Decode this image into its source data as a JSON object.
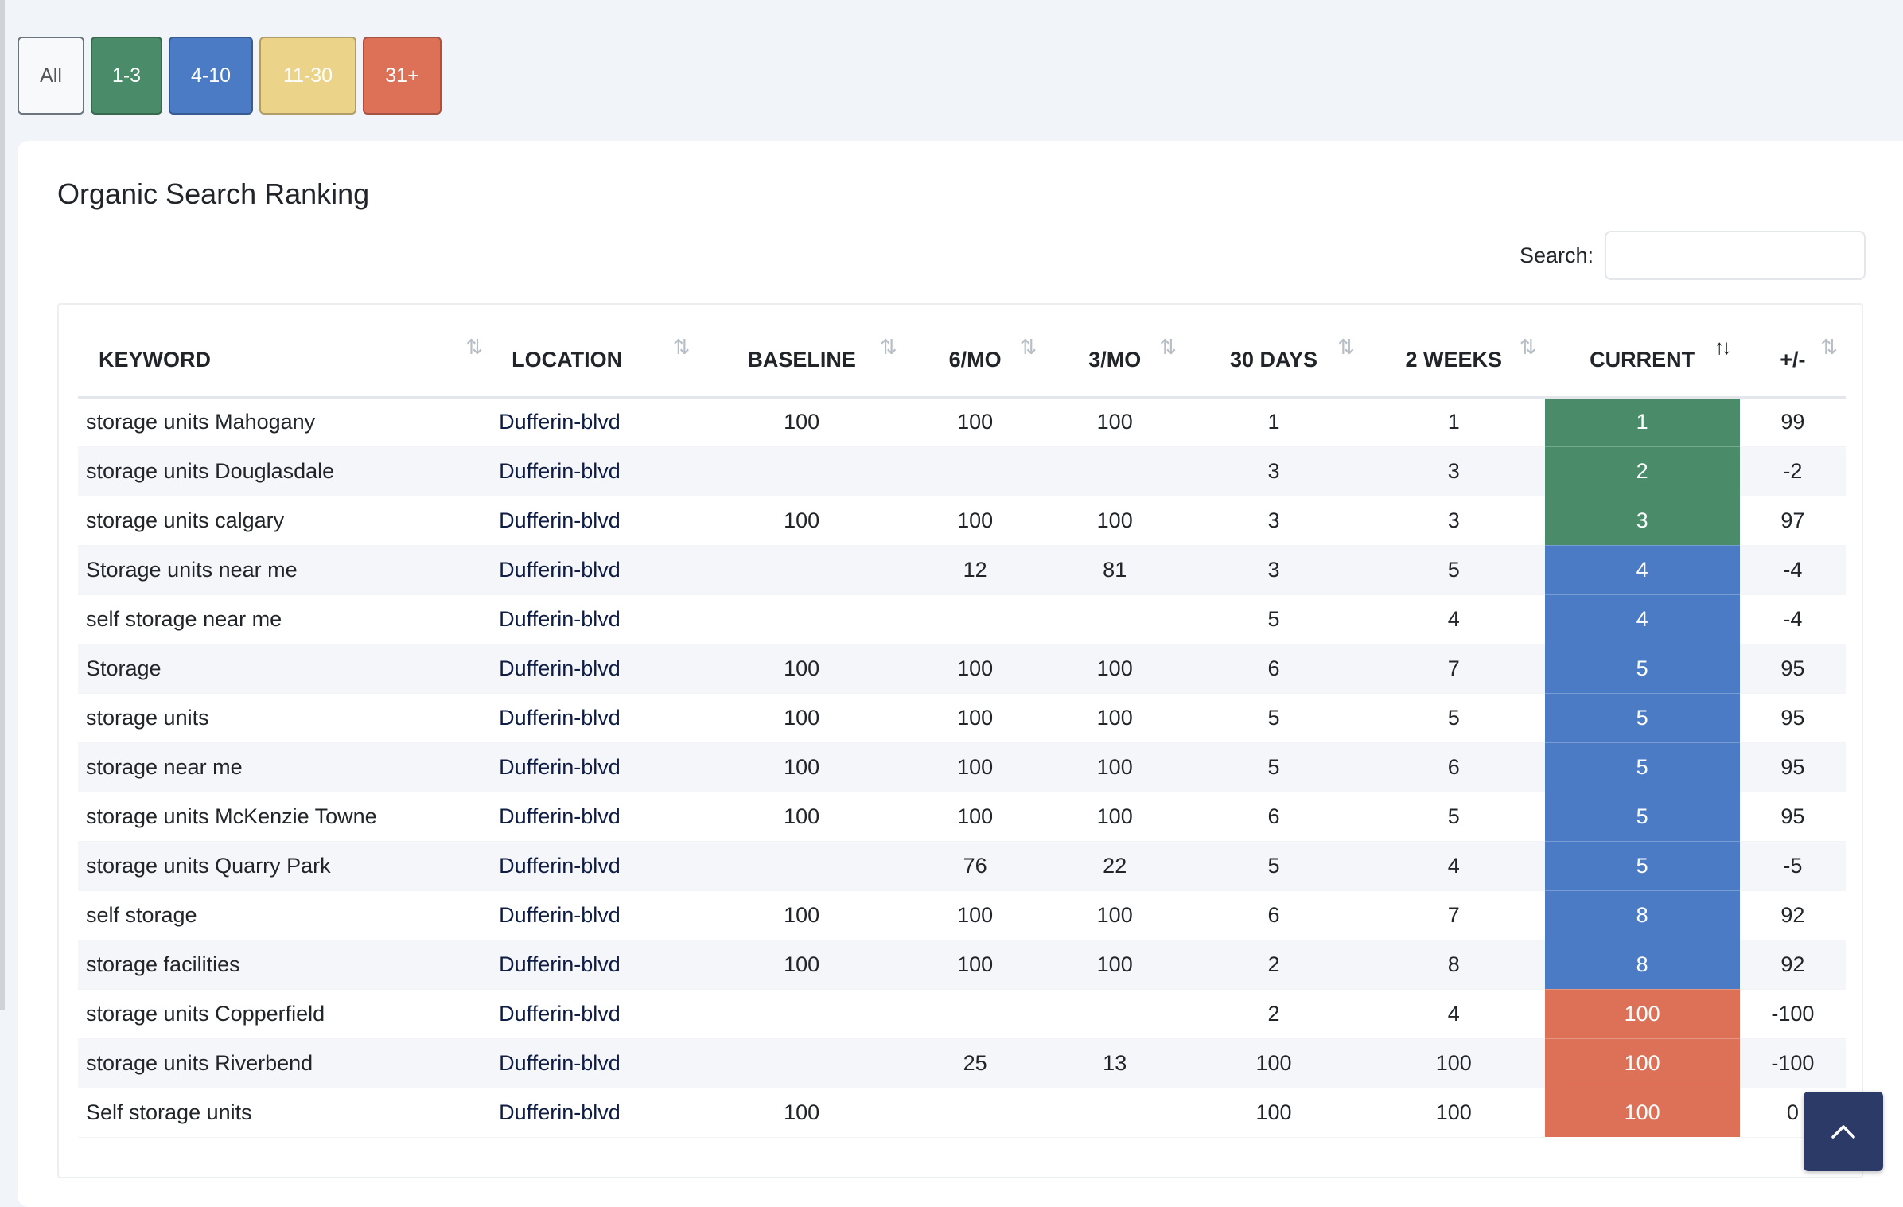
{
  "filters": [
    {
      "label": "All"
    },
    {
      "label": "1-3"
    },
    {
      "label": "4-10"
    },
    {
      "label": "11-30"
    },
    {
      "label": "31+"
    }
  ],
  "card": {
    "title": "Organic Search Ranking",
    "search_label": "Search:",
    "search_value": ""
  },
  "table": {
    "headers": [
      "KEYWORD",
      "LOCATION",
      "BASELINE",
      "6/MO",
      "3/MO",
      "30 DAYS",
      "2 WEEKS",
      "CURRENT",
      "+/-"
    ],
    "sort_icon": "⇅",
    "sort_active_icon": "↑↓",
    "rows": [
      {
        "keyword": "storage units Mahogany",
        "location": "Dufferin-blvd",
        "baseline": "100",
        "m6": "100",
        "m3": "100",
        "d30": "1",
        "w2": "1",
        "current": "1",
        "delta": "99",
        "tier": "green"
      },
      {
        "keyword": "storage units Douglasdale",
        "location": "Dufferin-blvd",
        "baseline": "",
        "m6": "",
        "m3": "",
        "d30": "3",
        "w2": "3",
        "current": "2",
        "delta": "-2",
        "tier": "green"
      },
      {
        "keyword": "storage units calgary",
        "location": "Dufferin-blvd",
        "baseline": "100",
        "m6": "100",
        "m3": "100",
        "d30": "3",
        "w2": "3",
        "current": "3",
        "delta": "97",
        "tier": "green"
      },
      {
        "keyword": "Storage units near me",
        "location": "Dufferin-blvd",
        "baseline": "",
        "m6": "12",
        "m3": "81",
        "d30": "3",
        "w2": "5",
        "current": "4",
        "delta": "-4",
        "tier": "blue"
      },
      {
        "keyword": "self storage near me",
        "location": "Dufferin-blvd",
        "baseline": "",
        "m6": "",
        "m3": "",
        "d30": "5",
        "w2": "4",
        "current": "4",
        "delta": "-4",
        "tier": "blue"
      },
      {
        "keyword": "Storage",
        "location": "Dufferin-blvd",
        "baseline": "100",
        "m6": "100",
        "m3": "100",
        "d30": "6",
        "w2": "7",
        "current": "5",
        "delta": "95",
        "tier": "blue"
      },
      {
        "keyword": "storage units",
        "location": "Dufferin-blvd",
        "baseline": "100",
        "m6": "100",
        "m3": "100",
        "d30": "5",
        "w2": "5",
        "current": "5",
        "delta": "95",
        "tier": "blue"
      },
      {
        "keyword": "storage near me",
        "location": "Dufferin-blvd",
        "baseline": "100",
        "m6": "100",
        "m3": "100",
        "d30": "5",
        "w2": "6",
        "current": "5",
        "delta": "95",
        "tier": "blue"
      },
      {
        "keyword": "storage units McKenzie Towne",
        "location": "Dufferin-blvd",
        "baseline": "100",
        "m6": "100",
        "m3": "100",
        "d30": "6",
        "w2": "5",
        "current": "5",
        "delta": "95",
        "tier": "blue"
      },
      {
        "keyword": "storage units Quarry Park",
        "location": "Dufferin-blvd",
        "baseline": "",
        "m6": "76",
        "m3": "22",
        "d30": "5",
        "w2": "4",
        "current": "5",
        "delta": "-5",
        "tier": "blue"
      },
      {
        "keyword": "self storage",
        "location": "Dufferin-blvd",
        "baseline": "100",
        "m6": "100",
        "m3": "100",
        "d30": "6",
        "w2": "7",
        "current": "8",
        "delta": "92",
        "tier": "blue"
      },
      {
        "keyword": "storage facilities",
        "location": "Dufferin-blvd",
        "baseline": "100",
        "m6": "100",
        "m3": "100",
        "d30": "2",
        "w2": "8",
        "current": "8",
        "delta": "92",
        "tier": "blue"
      },
      {
        "keyword": "storage units Copperfield",
        "location": "Dufferin-blvd",
        "baseline": "",
        "m6": "",
        "m3": "",
        "d30": "2",
        "w2": "4",
        "current": "100",
        "delta": "-100",
        "tier": "red"
      },
      {
        "keyword": "storage units Riverbend",
        "location": "Dufferin-blvd",
        "baseline": "",
        "m6": "25",
        "m3": "13",
        "d30": "100",
        "w2": "100",
        "current": "100",
        "delta": "-100",
        "tier": "red"
      },
      {
        "keyword": "Self storage units",
        "location": "Dufferin-blvd",
        "baseline": "100",
        "m6": "",
        "m3": "",
        "d30": "100",
        "w2": "100",
        "current": "100",
        "delta": "0",
        "tier": "red"
      }
    ]
  },
  "colors": {
    "green": "#4a8c6a",
    "blue": "#4a7bc4",
    "yellow": "#ecd38a",
    "red": "#dc7158",
    "scroll_button": "#2b3a67"
  },
  "scroll_top_icon": "chevron-up-icon"
}
